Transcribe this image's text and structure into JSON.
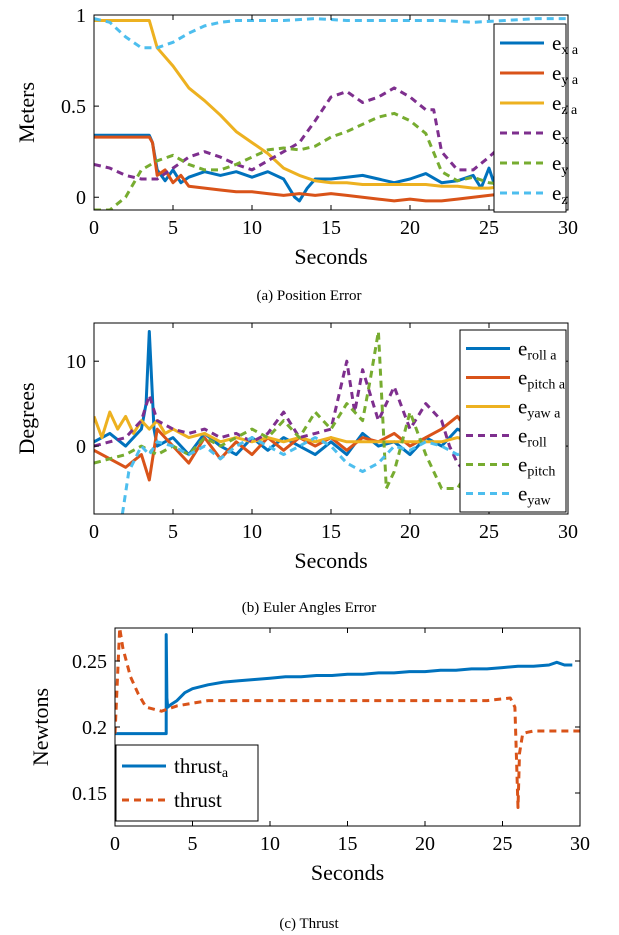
{
  "colors": {
    "blue": "#0072BD",
    "orange": "#D95319",
    "yellow": "#EDB120",
    "purple": "#7E2F8E",
    "green": "#77AC30",
    "cyan": "#4DBEEE"
  },
  "chart_data": [
    {
      "type": "line",
      "caption": "(a) Position Error",
      "xlabel": "Seconds",
      "ylabel": "Meters",
      "xlim": [
        0,
        30
      ],
      "ylim": [
        -0.07,
        1.0
      ],
      "xticks": [
        0,
        5,
        10,
        15,
        20,
        25,
        30
      ],
      "yticks": [
        0,
        0.5,
        1
      ],
      "ytick_labels": [
        "0",
        "0.5",
        "1"
      ],
      "legend_position": "top-right",
      "series": [
        {
          "name": "e",
          "sub": "x a",
          "color": "blue",
          "dash": false,
          "x": [
            0,
            3.5,
            3.7,
            4,
            4.5,
            5,
            5.5,
            6,
            7,
            8,
            9,
            10,
            11,
            12,
            12.7,
            13,
            13.5,
            14,
            15,
            16,
            17,
            18,
            19,
            20,
            21,
            22,
            23,
            24,
            24.5,
            25,
            25.5,
            26
          ],
          "y": [
            0.34,
            0.34,
            0.3,
            0.15,
            0.09,
            0.15,
            0.08,
            0.11,
            0.14,
            0.12,
            0.14,
            0.11,
            0.14,
            0.1,
            0.0,
            -0.02,
            0.05,
            0.1,
            0.1,
            0.11,
            0.12,
            0.1,
            0.08,
            0.1,
            0.13,
            0.08,
            0.09,
            0.12,
            0.05,
            0.16,
            0.03,
            0.04
          ]
        },
        {
          "name": "e",
          "sub": "y a",
          "color": "orange",
          "dash": false,
          "x": [
            0,
            3.5,
            3.7,
            4,
            4.5,
            5,
            5.5,
            6,
            7,
            8,
            9,
            10,
            11,
            12,
            13,
            14,
            15,
            16,
            17,
            18,
            19,
            20,
            21,
            22,
            23,
            24,
            25,
            26
          ],
          "y": [
            0.33,
            0.33,
            0.3,
            0.12,
            0.15,
            0.08,
            0.12,
            0.06,
            0.05,
            0.04,
            0.03,
            0.03,
            0.02,
            0.01,
            0.02,
            0.01,
            0.02,
            0.01,
            0.0,
            -0.01,
            -0.02,
            -0.01,
            -0.02,
            -0.02,
            -0.01,
            0.0,
            0.01,
            0.02
          ]
        },
        {
          "name": "e",
          "sub": "z a",
          "color": "yellow",
          "dash": false,
          "x": [
            0,
            3.5,
            4,
            5,
            6,
            7,
            8,
            9,
            10,
            11,
            12,
            13,
            14,
            15,
            16,
            17,
            18,
            19,
            20,
            21,
            22,
            23,
            24,
            25,
            26
          ],
          "y": [
            0.97,
            0.97,
            0.82,
            0.72,
            0.6,
            0.53,
            0.45,
            0.36,
            0.3,
            0.24,
            0.16,
            0.12,
            0.09,
            0.08,
            0.08,
            0.07,
            0.07,
            0.07,
            0.07,
            0.07,
            0.06,
            0.06,
            0.05,
            0.05,
            0.06
          ]
        },
        {
          "name": "e",
          "sub": "x",
          "color": "purple",
          "dash": true,
          "x": [
            0,
            1,
            2,
            3,
            4,
            5,
            6,
            7,
            8,
            9,
            10,
            11,
            12,
            13,
            14,
            15,
            16,
            17,
            18,
            19,
            20,
            21,
            21.5,
            22,
            23,
            24,
            25,
            26
          ],
          "y": [
            0.18,
            0.16,
            0.12,
            0.1,
            0.1,
            0.16,
            0.22,
            0.25,
            0.22,
            0.18,
            0.15,
            0.2,
            0.25,
            0.3,
            0.42,
            0.55,
            0.58,
            0.52,
            0.55,
            0.6,
            0.55,
            0.48,
            0.48,
            0.25,
            0.15,
            0.15,
            0.22,
            0.3
          ]
        },
        {
          "name": "e",
          "sub": "y",
          "color": "green",
          "dash": true,
          "x": [
            0,
            1,
            2,
            3,
            4,
            5,
            6,
            7,
            8,
            9,
            10,
            11,
            12,
            13,
            14,
            15,
            16,
            17,
            18,
            19,
            20,
            21,
            22,
            23,
            24,
            25,
            26
          ],
          "y": [
            -0.07,
            -0.07,
            0.0,
            0.15,
            0.2,
            0.23,
            0.18,
            0.15,
            0.15,
            0.18,
            0.22,
            0.26,
            0.27,
            0.26,
            0.28,
            0.33,
            0.36,
            0.4,
            0.44,
            0.46,
            0.42,
            0.35,
            0.14,
            0.09,
            0.11,
            0.08,
            0.07
          ]
        },
        {
          "name": "e",
          "sub": "z",
          "color": "cyan",
          "dash": true,
          "x": [
            0,
            1,
            2,
            3,
            4,
            5,
            6,
            7,
            8,
            9,
            10,
            12,
            14,
            16,
            18,
            20,
            22,
            24,
            26,
            28,
            30
          ],
          "y": [
            0.98,
            0.96,
            0.88,
            0.82,
            0.82,
            0.85,
            0.9,
            0.94,
            0.96,
            0.97,
            0.97,
            0.97,
            0.98,
            0.97,
            0.97,
            0.97,
            0.97,
            0.96,
            0.97,
            0.98,
            0.98
          ]
        }
      ]
    },
    {
      "type": "line",
      "caption": "(b) Euler Angles Error",
      "xlabel": "Seconds",
      "ylabel": "Degrees",
      "xlim": [
        0,
        30
      ],
      "ylim": [
        -8,
        14.5
      ],
      "xticks": [
        0,
        5,
        10,
        15,
        20,
        25,
        30
      ],
      "yticks": [
        0,
        10
      ],
      "ytick_labels": [
        "0",
        "10"
      ],
      "legend_position": "top-right",
      "series": [
        {
          "name": "e",
          "sub": "roll a",
          "color": "blue",
          "dash": false,
          "x": [
            0,
            1,
            2,
            3,
            3.3,
            3.5,
            3.8,
            4,
            5,
            6,
            7,
            8,
            9,
            10,
            11,
            12,
            13,
            14,
            15,
            16,
            17,
            18,
            19,
            20,
            21,
            22,
            23,
            24
          ],
          "y": [
            0.5,
            1.5,
            0,
            2,
            5,
            13.5,
            2,
            0,
            1,
            -1,
            1.5,
            0,
            -1,
            1,
            -0.5,
            1,
            0,
            -1,
            0.5,
            -1,
            1.5,
            0,
            0.5,
            -1,
            1,
            0,
            2,
            1
          ]
        },
        {
          "name": "e",
          "sub": "pitch a",
          "color": "orange",
          "dash": false,
          "x": [
            0,
            1,
            2,
            3,
            3.5,
            4,
            5,
            6,
            7,
            8,
            9,
            10,
            11,
            12,
            13,
            14,
            15,
            16,
            17,
            18,
            19,
            20,
            21,
            22,
            23,
            24
          ],
          "y": [
            -0.5,
            -1.5,
            -2.5,
            -1,
            -4,
            2,
            0,
            -2,
            1,
            -1.5,
            0.5,
            -1,
            1,
            -0.5,
            1,
            0,
            1,
            -0.5,
            1,
            0.5,
            1.5,
            0,
            1,
            2,
            3.5,
            1
          ]
        },
        {
          "name": "e",
          "sub": "yaw a",
          "color": "yellow",
          "dash": false,
          "x": [
            0,
            0.5,
            1,
            1.5,
            2,
            2.5,
            3,
            3.5,
            4,
            4.5,
            5,
            6,
            7,
            8,
            9,
            10,
            11,
            12,
            13,
            14,
            15,
            16,
            17,
            18,
            19,
            20,
            21,
            22,
            23,
            24
          ],
          "y": [
            3.5,
            1,
            4,
            2,
            3.5,
            1.5,
            3,
            2,
            3,
            1.5,
            2,
            1,
            1.5,
            0.5,
            1,
            0.5,
            1,
            0.5,
            1,
            0.5,
            1,
            0.5,
            0.5,
            0.5,
            0.5,
            0.5,
            0.5,
            0.5,
            1,
            0.5
          ]
        },
        {
          "name": "e",
          "sub": "roll",
          "color": "purple",
          "dash": true,
          "x": [
            0,
            1,
            2,
            3,
            3.5,
            4,
            5,
            6,
            7,
            8,
            9,
            10,
            11,
            12,
            13,
            14,
            15,
            15.5,
            16,
            16.5,
            17,
            18,
            19,
            20,
            21,
            22,
            22.5,
            23,
            24
          ],
          "y": [
            0,
            0.5,
            1,
            3,
            6,
            3,
            2,
            1.5,
            2,
            1,
            1.5,
            0.5,
            1.5,
            4,
            1,
            1.5,
            2,
            6,
            10,
            4,
            9,
            3,
            7,
            2,
            5,
            3,
            0,
            -2,
            -4
          ]
        },
        {
          "name": "e",
          "sub": "pitch",
          "color": "green",
          "dash": true,
          "x": [
            0,
            1,
            2,
            3,
            4,
            5,
            6,
            7,
            8,
            9,
            10,
            11,
            12,
            13,
            14,
            15,
            16,
            17,
            17.5,
            18,
            18.5,
            19,
            20,
            21,
            22,
            23,
            24,
            25,
            26,
            26.5
          ],
          "y": [
            -2,
            -1.5,
            -1,
            0,
            -1,
            0,
            -1,
            1,
            0,
            1,
            2,
            1,
            3,
            1,
            4,
            2,
            5,
            3,
            8,
            13.5,
            -5,
            -3,
            4,
            -1,
            -5,
            -5,
            -2,
            -3,
            -6,
            -8
          ]
        },
        {
          "name": "e",
          "sub": "yaw",
          "color": "cyan",
          "dash": true,
          "x": [
            1.8,
            2.2,
            2.6,
            3,
            3.5,
            4,
            5,
            6,
            7,
            8,
            9,
            10,
            11,
            12,
            13,
            14,
            15,
            16,
            17,
            18,
            19,
            20,
            21,
            22,
            23,
            24
          ],
          "y": [
            -8,
            -3,
            -1.5,
            0,
            -1,
            0.5,
            0,
            -1,
            0,
            -1.5,
            0,
            1,
            0,
            -1,
            0,
            1,
            0,
            -2,
            -3,
            -2,
            0,
            -0.5,
            0.5,
            0,
            -1,
            -0.5
          ]
        }
      ]
    },
    {
      "type": "line",
      "caption": "(c) Thrust",
      "xlabel": "Seconds",
      "ylabel": "Newtons",
      "xlim": [
        0,
        30
      ],
      "ylim": [
        0.125,
        0.275
      ],
      "xticks": [
        0,
        5,
        10,
        15,
        20,
        25,
        30
      ],
      "yticks": [
        0.15,
        0.2,
        0.25
      ],
      "ytick_labels": [
        "0.15",
        "0.2",
        "0.25"
      ],
      "legend_position": "bottom-left",
      "series": [
        {
          "name": "thrust",
          "sub": "a",
          "color": "blue",
          "dash": false,
          "x": [
            0,
            3.3,
            3.3,
            3.35,
            3.4,
            3.6,
            4,
            4.5,
            5,
            6,
            7,
            8,
            9,
            10,
            11,
            12,
            13,
            14,
            15,
            16,
            17,
            18,
            19,
            20,
            21,
            22,
            23,
            24,
            25,
            26,
            27,
            28,
            28.5,
            29,
            29.5
          ],
          "y": [
            0.195,
            0.195,
            0.27,
            0.222,
            0.215,
            0.217,
            0.22,
            0.226,
            0.229,
            0.232,
            0.234,
            0.235,
            0.236,
            0.237,
            0.238,
            0.238,
            0.239,
            0.239,
            0.24,
            0.24,
            0.241,
            0.241,
            0.242,
            0.242,
            0.243,
            0.243,
            0.244,
            0.244,
            0.245,
            0.246,
            0.246,
            0.247,
            0.249,
            0.247,
            0.247
          ]
        },
        {
          "name": "thrust",
          "sub": "",
          "color": "orange",
          "dash": true,
          "x": [
            0,
            0.3,
            0.5,
            1,
            1.5,
            2,
            3,
            4,
            5,
            6,
            8,
            10,
            12,
            14,
            16,
            18,
            20,
            22,
            24,
            25.5,
            25.8,
            26,
            26.1,
            26.3,
            26.6,
            27,
            28,
            30
          ],
          "y": [
            0.195,
            0.275,
            0.26,
            0.238,
            0.225,
            0.215,
            0.212,
            0.216,
            0.218,
            0.22,
            0.22,
            0.22,
            0.22,
            0.22,
            0.22,
            0.22,
            0.22,
            0.22,
            0.22,
            0.222,
            0.215,
            0.139,
            0.18,
            0.195,
            0.196,
            0.197,
            0.197,
            0.197
          ]
        }
      ]
    }
  ]
}
